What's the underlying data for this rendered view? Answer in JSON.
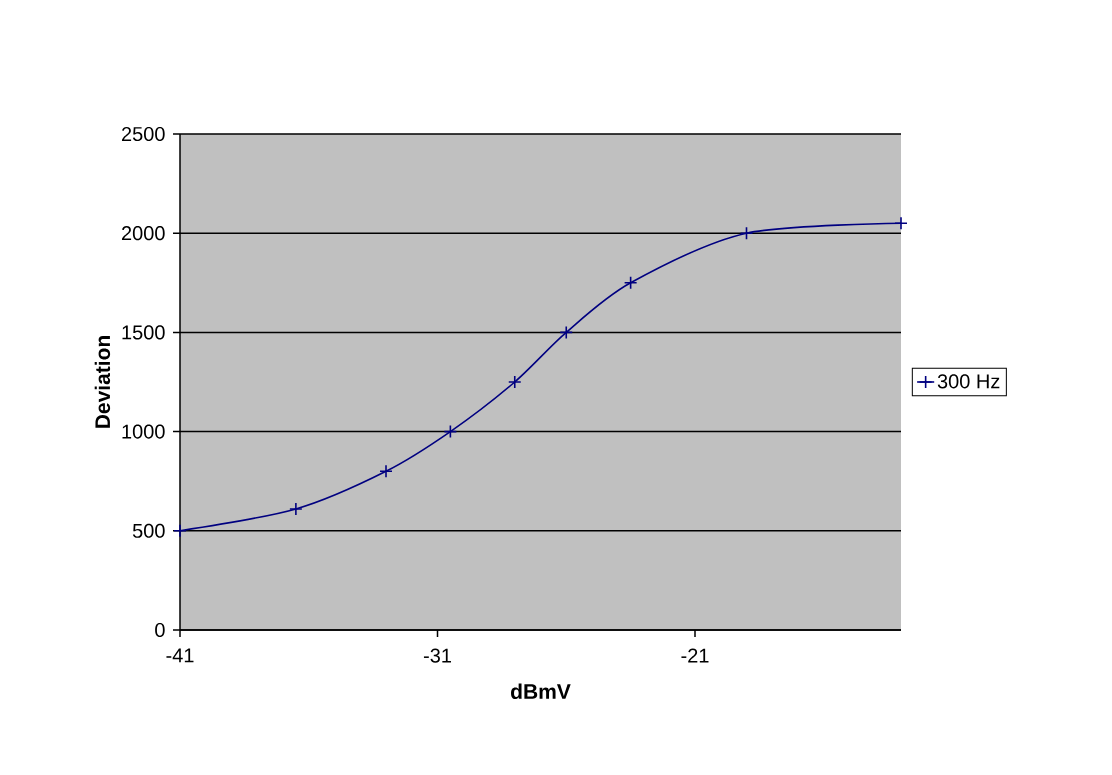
{
  "chart_data": {
    "type": "line",
    "xlabel": "dBmV",
    "ylabel": "Deviation",
    "x": [
      -41,
      -36.5,
      -33,
      -30.5,
      -28,
      -26,
      -23.5,
      -19,
      -13
    ],
    "series": [
      {
        "name": "300 Hz",
        "color": "#000080",
        "values": [
          500,
          610,
          800,
          1000,
          1250,
          1500,
          1750,
          2000,
          2050
        ]
      }
    ],
    "xlim": [
      -41,
      -13
    ],
    "xticks": [
      -41,
      -31,
      -21
    ],
    "ylim": [
      0,
      2500
    ],
    "yticks": [
      0,
      500,
      1000,
      1500,
      2000,
      2500
    ],
    "grid": "y",
    "legend": "right",
    "marker": "cross",
    "line_style": "solid"
  }
}
